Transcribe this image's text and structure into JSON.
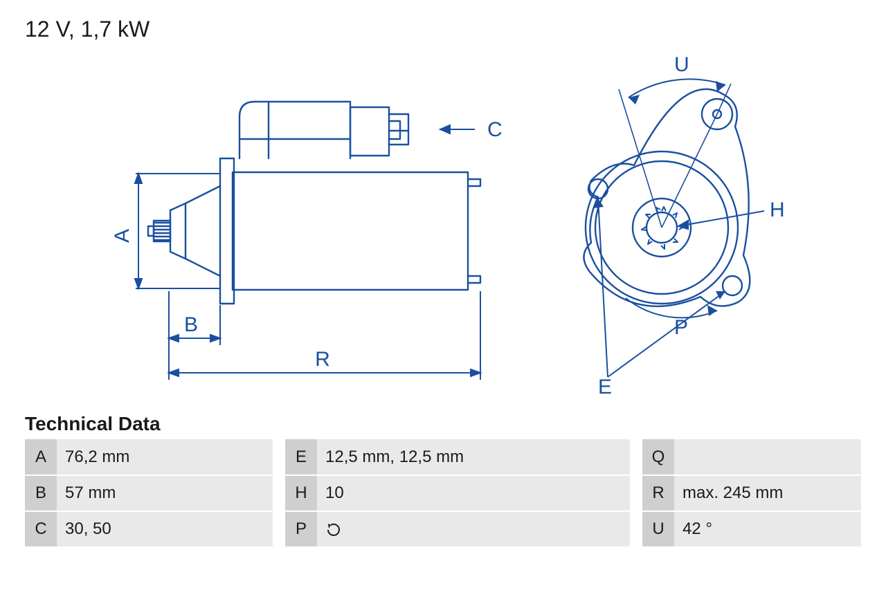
{
  "title": "12 V, 1,7 kW",
  "tech_heading": "Technical Data",
  "colors": {
    "stroke_drawing": "#1a4fa0",
    "stroke_dim": "#1a4fa0",
    "label": "#1a4fa0",
    "text": "#1a1a1a",
    "row_key_bg": "#cfcfcf",
    "row_val_bg": "#e9e9e9",
    "border": "#ffffff"
  },
  "diagram": {
    "labels": {
      "A": "A",
      "B": "B",
      "C": "C",
      "R": "R",
      "U": "U",
      "H": "H",
      "P": "P",
      "E": "E"
    }
  },
  "table": {
    "rows": [
      {
        "c1k": "A",
        "c1v": "76,2 mm",
        "c2k": "E",
        "c2v": "12,5 mm, 12,5 mm",
        "c3k": "Q",
        "c3v": ""
      },
      {
        "c1k": "B",
        "c1v": "57 mm",
        "c2k": "H",
        "c2v": "10",
        "c3k": "R",
        "c3v": "max. 245 mm"
      },
      {
        "c1k": "C",
        "c1v": "30, 50",
        "c2k": "P",
        "c2v": "__ROT__",
        "c3k": "U",
        "c3v": "42 °"
      }
    ]
  }
}
